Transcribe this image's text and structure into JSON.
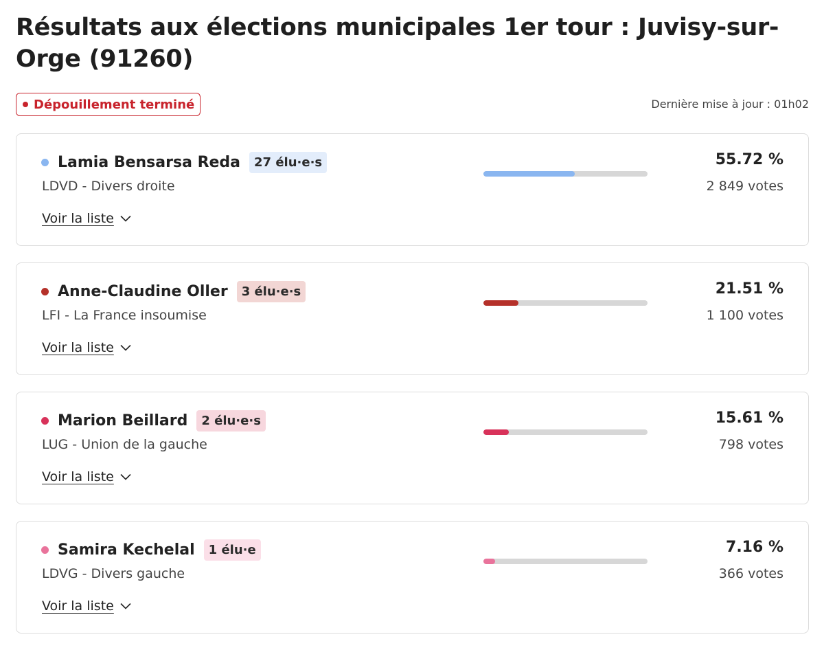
{
  "page": {
    "title": "Résultats aux élections municipales 1er tour : Juvisy-sur-Orge (91260)",
    "status": "Dépouillement terminé",
    "last_update": "Dernière mise à jour : 01h02"
  },
  "candidates": [
    {
      "name": "Lamia Bensarsa Reda",
      "elus": "27 élu·e·s",
      "party": "LDVD - Divers droite",
      "percent_label": "55.72 %",
      "percent": 55.72,
      "votes": "2 849 votes",
      "list_link": "Voir la liste",
      "color": "#8ab6f0",
      "badge_bg": "#e3edfb"
    },
    {
      "name": "Anne-Claudine Oller",
      "elus": "3 élu·e·s",
      "party": "LFI - La France insoumise",
      "percent_label": "21.51 %",
      "percent": 21.51,
      "votes": "1 100 votes",
      "list_link": "Voir la liste",
      "color": "#b5312a",
      "badge_bg": "#f2d6d4"
    },
    {
      "name": "Marion Beillard",
      "elus": "2 élu·e·s",
      "party": "LUG - Union de la gauche",
      "percent_label": "15.61 %",
      "percent": 15.61,
      "votes": "798 votes",
      "list_link": "Voir la liste",
      "color": "#d8325a",
      "badge_bg": "#f7d7de"
    },
    {
      "name": "Samira Kechelal",
      "elus": "1 élu·e",
      "party": "LDVG - Divers gauche",
      "percent_label": "7.16 %",
      "percent": 7.16,
      "votes": "366 votes",
      "list_link": "Voir la liste",
      "color": "#e9739b",
      "badge_bg": "#fbdfe8"
    }
  ]
}
